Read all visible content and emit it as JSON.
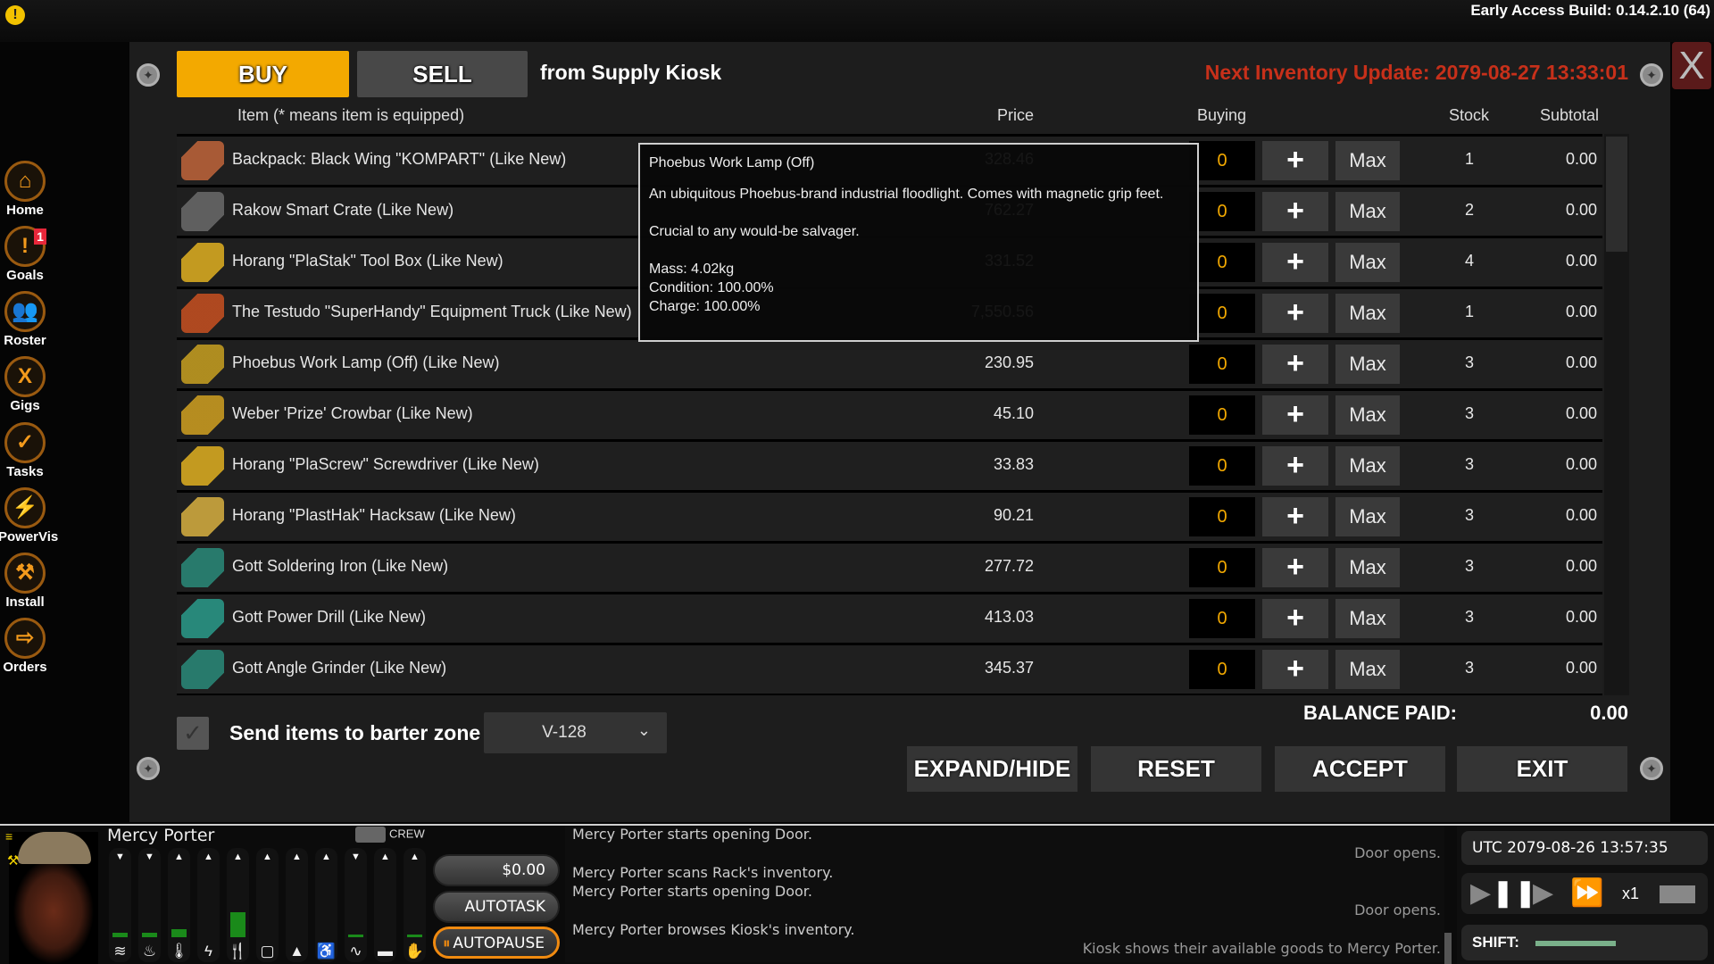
{
  "build": "Early Access Build: 0.14.2.10 (64)",
  "trade": {
    "buy_tab": "BUY",
    "sell_tab": "SELL",
    "active_tab": "BUY",
    "vendor": "from Supply Kiosk",
    "next_update": "Next Inventory Update: 2079-08-27 13:33:01",
    "close_label": "X",
    "headers": {
      "item": "Item (* means item is equipped)",
      "price": "Price",
      "buying": "Buying",
      "stock": "Stock",
      "subtotal": "Subtotal"
    },
    "plus_label": "+",
    "max_label": "Max",
    "rows": [
      {
        "name": "Backpack: Black Wing \"KOMPART\" (Like New)",
        "price": "328.46",
        "buying": "0",
        "stock": "1",
        "subtotal": "0.00",
        "icon": "backpack-icon",
        "color": "#c0643a"
      },
      {
        "name": "Rakow Smart Crate (Like New)",
        "price": "762.27",
        "buying": "0",
        "stock": "2",
        "subtotal": "0.00",
        "icon": "crate-icon",
        "color": "#6a6a6a"
      },
      {
        "name": "Horang \"PlaStak\" Tool Box (Like New)",
        "price": "331.52",
        "buying": "0",
        "stock": "4",
        "subtotal": "0.00",
        "icon": "toolbox-icon",
        "color": "#e0b020"
      },
      {
        "name": "The Testudo \"SuperHandy\" Equipment Truck (Like New)",
        "price": "7,550.56",
        "buying": "0",
        "stock": "1",
        "subtotal": "0.00",
        "icon": "truck-icon",
        "color": "#c85020"
      },
      {
        "name": "Phoebus Work Lamp (Off) (Like New)",
        "price": "230.95",
        "buying": "0",
        "stock": "3",
        "subtotal": "0.00",
        "icon": "lamp-icon",
        "color": "#c8a020"
      },
      {
        "name": "Weber 'Prize' Crowbar (Like New)",
        "price": "45.10",
        "buying": "0",
        "stock": "3",
        "subtotal": "0.00",
        "icon": "crowbar-icon",
        "color": "#d0a020"
      },
      {
        "name": "Horang \"PlaScrew\" Screwdriver (Like New)",
        "price": "33.83",
        "buying": "0",
        "stock": "3",
        "subtotal": "0.00",
        "icon": "screwdriver-icon",
        "color": "#e0b020"
      },
      {
        "name": "Horang \"PlastHak\" Hacksaw (Like New)",
        "price": "90.21",
        "buying": "0",
        "stock": "3",
        "subtotal": "0.00",
        "icon": "hacksaw-icon",
        "color": "#d8b040"
      },
      {
        "name": "Gott Soldering Iron (Like New)",
        "price": "277.72",
        "buying": "0",
        "stock": "3",
        "subtotal": "0.00",
        "icon": "soldering-iron-icon",
        "color": "#2a8a7a"
      },
      {
        "name": "Gott Power Drill (Like New)",
        "price": "413.03",
        "buying": "0",
        "stock": "3",
        "subtotal": "0.00",
        "icon": "drill-icon",
        "color": "#2a9a8a"
      },
      {
        "name": "Gott Angle Grinder (Like New)",
        "price": "345.37",
        "buying": "0",
        "stock": "3",
        "subtotal": "0.00",
        "icon": "grinder-icon",
        "color": "#2a8a7a"
      }
    ],
    "tooltip": {
      "title": "Phoebus Work Lamp (Off)",
      "description": "An ubiquitous Phoebus-brand industrial floodlight. Comes with magnetic grip feet.",
      "flavor": "Crucial to any would-be salvager.",
      "mass": "Mass: 4.02kg",
      "condition": "Condition: 100.00%",
      "charge": "Charge: 100.00%"
    },
    "send_to_barter": {
      "label": "Send items to barter zone",
      "checked": true
    },
    "zone_select": "V-128",
    "balance_label": "BALANCE PAID:",
    "balance_value": "0.00",
    "buttons": {
      "expand": "EXPAND/HIDE",
      "reset": "RESET",
      "accept": "ACCEPT",
      "exit": "EXIT"
    }
  },
  "sidebar": [
    {
      "label": "Home",
      "icon": "home-icon",
      "glyph": "⌂"
    },
    {
      "label": "Goals",
      "icon": "exclamation-icon",
      "glyph": "!",
      "badge": "1"
    },
    {
      "label": "Roster",
      "icon": "people-icon",
      "glyph": "👥"
    },
    {
      "label": "Gigs",
      "icon": "gigs-x-icon",
      "glyph": "X"
    },
    {
      "label": "Tasks",
      "icon": "clipboard-check-icon",
      "glyph": "✓"
    },
    {
      "label": "PowerVis",
      "icon": "lightning-icon",
      "glyph": "⚡"
    },
    {
      "label": "Install",
      "icon": "hammer-icon",
      "glyph": "⚒"
    },
    {
      "label": "Orders",
      "icon": "exit-arrow-icon",
      "glyph": "⇨"
    }
  ],
  "crew": {
    "name": "Mercy Porter",
    "crew_label": "CREW",
    "money": "$0.00",
    "autotask": "AUTOTASK",
    "autopause": "AUTOPAUSE",
    "stats": [
      {
        "icon": "wave-icon",
        "glyph": "≋",
        "dir": "down",
        "level": 0.05
      },
      {
        "icon": "fire-icon",
        "glyph": "♨",
        "dir": "down",
        "level": 0.05
      },
      {
        "icon": "thermometer-icon",
        "glyph": "🌡",
        "dir": "up",
        "level": 0.1
      },
      {
        "icon": "bolt-icon",
        "glyph": "ϟ",
        "dir": "up",
        "level": 0
      },
      {
        "icon": "fork-knife-icon",
        "glyph": "🍴",
        "dir": "up",
        "level": 0.3
      },
      {
        "icon": "cup-icon",
        "glyph": "▢",
        "dir": "up",
        "level": 0
      },
      {
        "icon": "weight-icon",
        "glyph": "▲",
        "dir": "up",
        "level": 0
      },
      {
        "icon": "toilet-icon",
        "glyph": "♿",
        "dir": "up",
        "level": 0
      },
      {
        "icon": "heartbeat-icon",
        "glyph": "∿",
        "dir": "down",
        "level": 0.03
      },
      {
        "icon": "bed-icon",
        "glyph": "▬",
        "dir": "up",
        "level": 0
      },
      {
        "icon": "hand-icon",
        "glyph": "✋",
        "dir": "up",
        "level": 0.03
      }
    ]
  },
  "log": {
    "left": [
      "Mercy Porter starts opening Door.",
      "Mercy Porter scans Rack's inventory.",
      "Mercy Porter starts opening Door.",
      "Mercy Porter browses Kiosk's inventory."
    ],
    "right": [
      "Door opens.",
      "Door opens.",
      "Kiosk shows their available goods to Mercy Porter."
    ]
  },
  "time": {
    "utc": "UTC 2079-08-26 13:57:35",
    "speed": "x1",
    "shift_label": "SHIFT:"
  }
}
